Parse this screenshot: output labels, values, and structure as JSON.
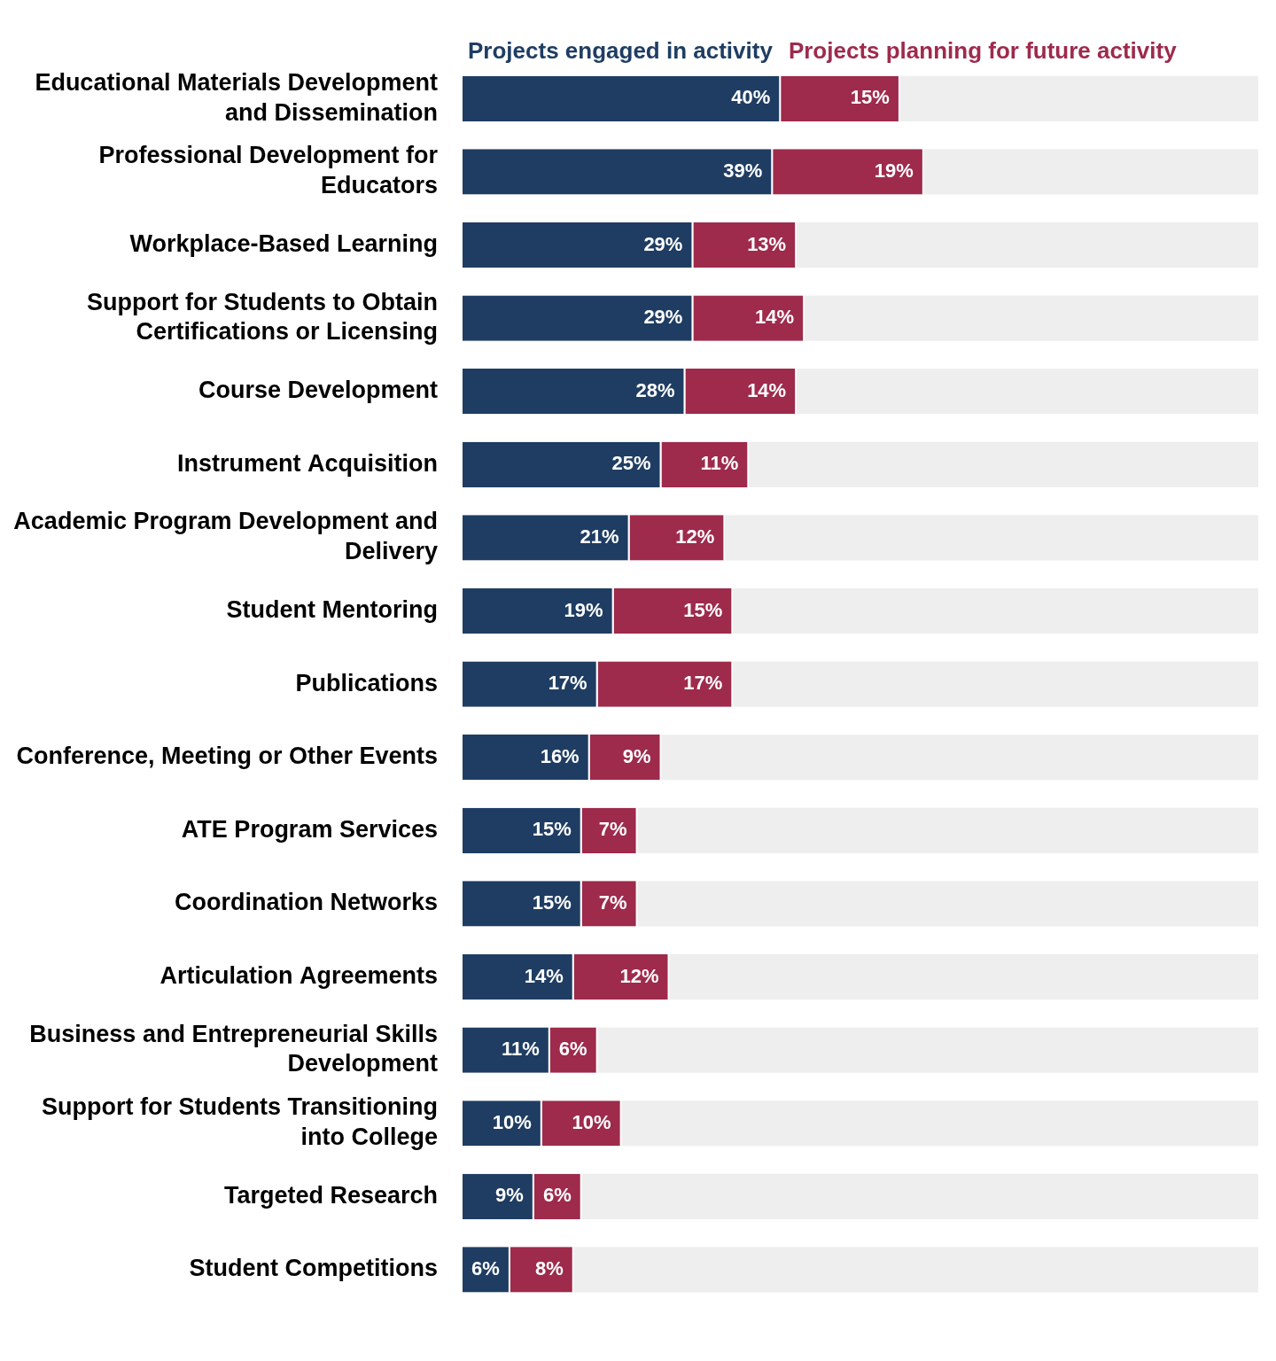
{
  "chart_data": {
    "type": "bar",
    "orientation": "horizontal",
    "stacked": true,
    "legend": "top",
    "grid": false,
    "data_labels": true,
    "tick_labels": "y",
    "xlim": [
      0,
      100
    ],
    "categories": [
      "Educational Materials Development and Dissemination",
      "Professional Development for Educators",
      "Workplace-Based Learning",
      "Support for Students to Obtain Certifications or Licensing",
      "Course Development",
      "Instrument Acquisition",
      "Academic Program Development and Delivery",
      "Student Mentoring",
      "Publications",
      "Conference, Meeting or Other Events",
      "ATE Program Services",
      "Coordination Networks",
      "Articulation Agreements",
      "Business and Entrepreneurial Skills Development",
      "Support for Students Transitioning into College",
      "Targeted Research",
      "Student Competitions"
    ],
    "series": [
      {
        "name": "Projects engaged in activity",
        "color": "#1f3d63",
        "values": [
          40,
          39,
          29,
          29,
          28,
          25,
          21,
          19,
          17,
          16,
          15,
          15,
          14,
          11,
          10,
          9,
          6
        ],
        "value_labels": [
          "40%",
          "39%",
          "29%",
          "29%",
          "28%",
          "25%",
          "21%",
          "19%",
          "17%",
          "16%",
          "15%",
          "15%",
          "14%",
          "11%",
          "10%",
          "9%",
          "6%"
        ]
      },
      {
        "name": "Projects planning for future activity",
        "color": "#9e2a4c",
        "values": [
          15,
          19,
          13,
          14,
          14,
          11,
          12,
          15,
          17,
          9,
          7,
          7,
          12,
          6,
          10,
          6,
          8
        ],
        "value_labels": [
          "15%",
          "19%",
          "13%",
          "14%",
          "14%",
          "11%",
          "12%",
          "15%",
          "17%",
          "9%",
          "7%",
          "7%",
          "12%",
          "6%",
          "10%",
          "6%",
          "8%"
        ]
      }
    ]
  }
}
